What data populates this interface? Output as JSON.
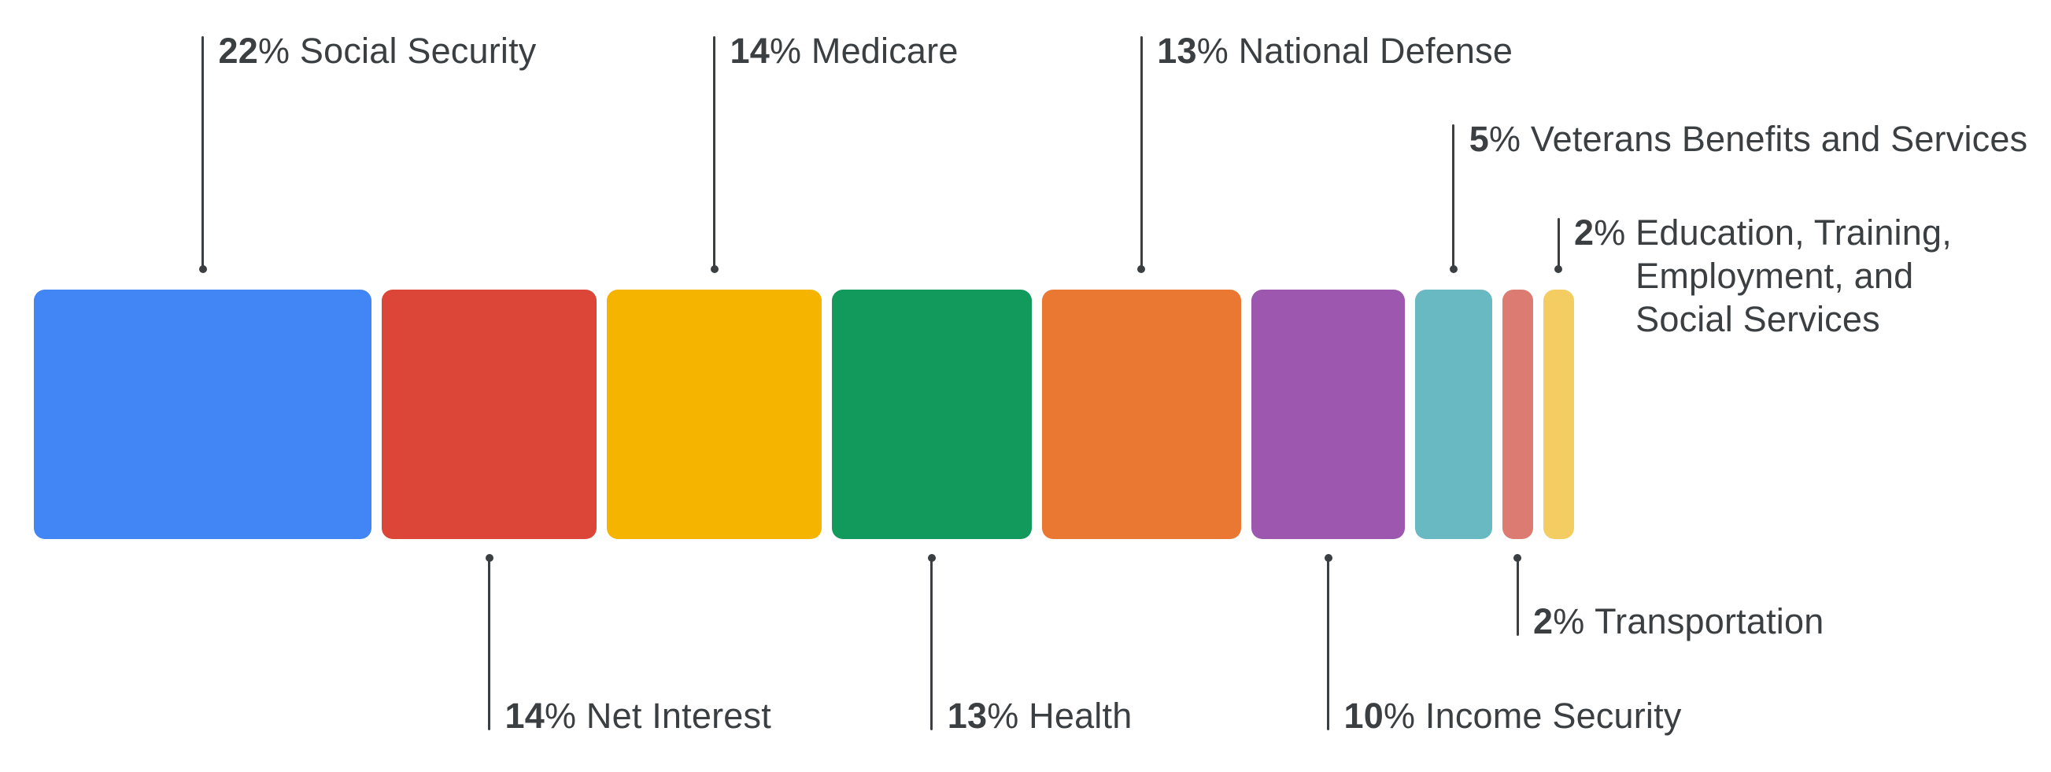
{
  "chart_data": {
    "type": "bar",
    "variant": "proportional-horizontal-segment-bar",
    "title": "",
    "unit": "%",
    "axes": "none",
    "grid": false,
    "legend": "none",
    "background": "#FFFFFF",
    "text_color": "#3B3F42",
    "connector_color": "#3B3F42",
    "segments": [
      {
        "value": 22,
        "label": "Social Security",
        "color": "#4285F4",
        "label_side": "top",
        "label_tier": 0
      },
      {
        "value": 14,
        "label": "Net Interest",
        "color": "#DB4639",
        "label_side": "bottom",
        "label_tier": 0
      },
      {
        "value": 14,
        "label": "Medicare",
        "color": "#F4B400",
        "label_side": "top",
        "label_tier": 0
      },
      {
        "value": 13,
        "label": "Health",
        "color": "#129A5C",
        "label_side": "bottom",
        "label_tier": 0
      },
      {
        "value": 13,
        "label": "National Defense",
        "color": "#EB7832",
        "label_side": "top",
        "label_tier": 0
      },
      {
        "value": 10,
        "label": "Income Security",
        "color": "#9E57AF",
        "label_side": "bottom",
        "label_tier": 0
      },
      {
        "value": 5,
        "label": "Veterans Benefits and Services",
        "color": "#69B9C3",
        "label_side": "top",
        "label_tier": 1
      },
      {
        "value": 2,
        "label": "Transportation",
        "color": "#DB7B72",
        "label_side": "bottom",
        "label_tier": 1
      },
      {
        "value": 2,
        "label": "Education, Training, Employment, and Social Services",
        "color": "#F3CD62",
        "label_side": "top",
        "label_tier": 2,
        "label_lines": [
          "Education, Training,",
          "Employment, and",
          "Social Services"
        ]
      }
    ]
  }
}
